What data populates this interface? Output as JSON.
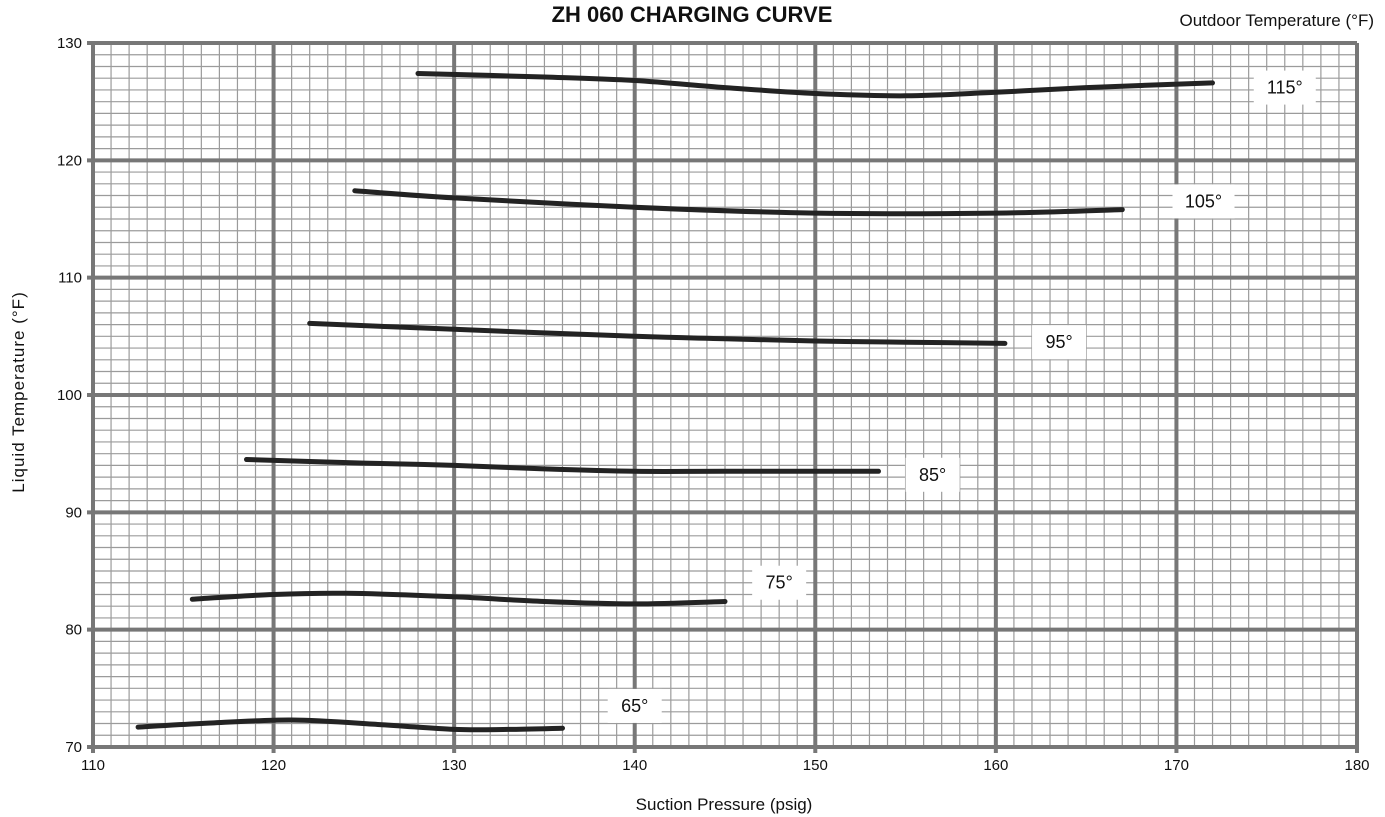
{
  "chart_data": {
    "type": "line",
    "title": "ZH 060 CHARGING CURVE",
    "legend_title": "Outdoor Temperature (°F)",
    "xlabel": "Suction Pressure (psig)",
    "ylabel": "Liquid Temperature (°F)",
    "xlim": [
      110,
      180
    ],
    "ylim": [
      70,
      130
    ],
    "x_ticks": [
      110,
      120,
      130,
      140,
      150,
      160,
      170,
      180
    ],
    "y_ticks": [
      70,
      80,
      90,
      100,
      110,
      120,
      130
    ],
    "grid": true,
    "series": [
      {
        "name": "65°",
        "x": [
          112.5,
          116,
          121,
          126,
          130,
          133,
          136
        ],
        "y": [
          71.7,
          72.0,
          72.3,
          71.9,
          71.5,
          71.5,
          71.6
        ]
      },
      {
        "name": "75°",
        "x": [
          115.5,
          120,
          124,
          130,
          135,
          140,
          145
        ],
        "y": [
          82.6,
          83.0,
          83.1,
          82.8,
          82.4,
          82.2,
          82.4
        ]
      },
      {
        "name": "85°",
        "x": [
          118.5,
          125,
          130,
          135,
          140,
          145,
          153.5
        ],
        "y": [
          94.5,
          94.2,
          94.0,
          93.7,
          93.5,
          93.5,
          93.5
        ]
      },
      {
        "name": "95°",
        "x": [
          122,
          130,
          140,
          145,
          150,
          155,
          160.5
        ],
        "y": [
          106.1,
          105.6,
          105.0,
          104.8,
          104.6,
          104.5,
          104.4
        ]
      },
      {
        "name": "105°",
        "x": [
          124.5,
          130,
          140,
          150,
          160,
          167
        ],
        "y": [
          117.4,
          116.8,
          116.0,
          115.5,
          115.5,
          115.8
        ]
      },
      {
        "name": "115°",
        "x": [
          128,
          135,
          140,
          145,
          150,
          155,
          160,
          165,
          172
        ],
        "y": [
          127.4,
          127.1,
          126.8,
          126.2,
          125.7,
          125.5,
          125.8,
          126.2,
          126.6
        ]
      }
    ],
    "series_label_positions": [
      {
        "name": "65°",
        "x": 140,
        "y": 73.5
      },
      {
        "name": "75°",
        "x": 148,
        "y": 84.0
      },
      {
        "name": "85°",
        "x": 156.5,
        "y": 93.2
      },
      {
        "name": "95°",
        "x": 163.5,
        "y": 104.5
      },
      {
        "name": "105°",
        "x": 171.5,
        "y": 116.5
      },
      {
        "name": "115°",
        "x": 176,
        "y": 126.2
      }
    ],
    "colors": {
      "line": "#232323",
      "major_grid": "#777777",
      "minor_grid": "#9b9b9b",
      "background": "#ffffff"
    }
  }
}
